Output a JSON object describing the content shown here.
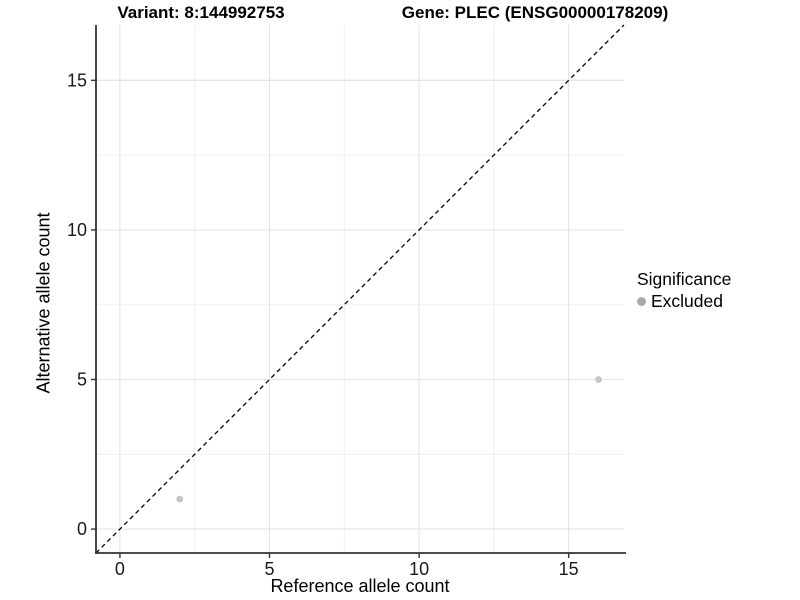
{
  "chart_data": {
    "type": "scatter",
    "titles": {
      "variant": "Variant: 8:144992753",
      "gene": "Gene: PLEC (ENSG00000178209)"
    },
    "xlabel": "Reference allele count",
    "ylabel": "Alternative allele count",
    "xlim": [
      -0.8,
      16.85
    ],
    "ylim": [
      -0.8,
      16.85
    ],
    "x_ticks": [
      0,
      5,
      10,
      15
    ],
    "y_ticks": [
      0,
      5,
      10,
      15
    ],
    "x_minor_ticks": [
      2.5,
      7.5,
      12.5
    ],
    "y_minor_ticks": [
      2.5,
      7.5,
      12.5
    ],
    "grid": true,
    "legend_position": "right",
    "reference_line": {
      "kind": "identity",
      "slope": 1,
      "intercept": 0,
      "style": "dashed",
      "color": "#000000"
    },
    "series": [
      {
        "name": "Excluded",
        "color": "#c6c6c6",
        "points": [
          {
            "x": 2,
            "y": 1
          },
          {
            "x": 16,
            "y": 5
          }
        ]
      }
    ],
    "legend": {
      "title": "Significance",
      "items": [
        {
          "label": "Excluded",
          "color": "#a9a9a9"
        }
      ]
    }
  },
  "colors": {
    "background": "#ffffff",
    "grid_major": "#e3e3e3",
    "grid_minor": "#efefef",
    "axis_line": "#333333",
    "tick_text": "#1a1a1a"
  }
}
